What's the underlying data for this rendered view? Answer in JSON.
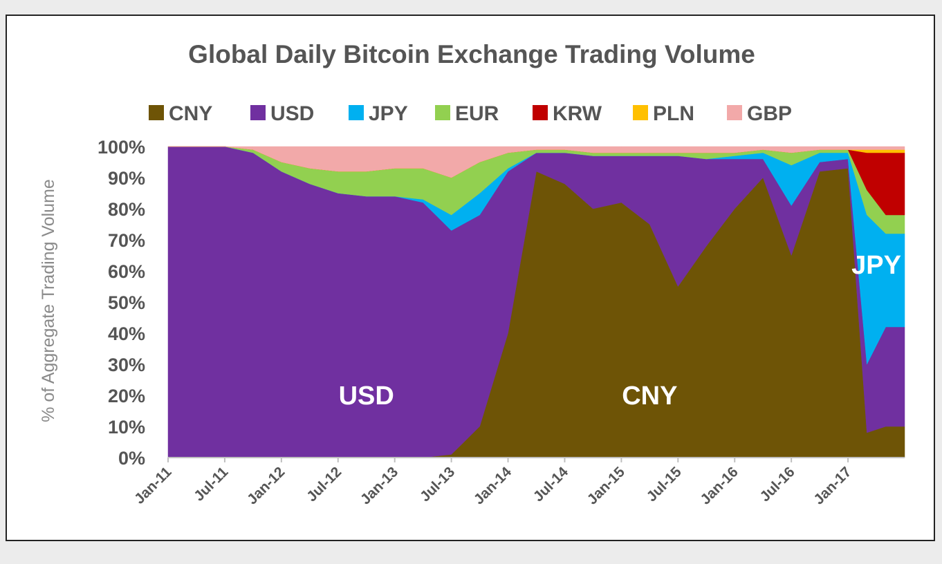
{
  "chart_data": {
    "type": "area",
    "stacked": "percent",
    "title": "Global Daily Bitcoin Exchange Trading Volume",
    "ylabel": "% of Aggregate Trading Volume",
    "xlabel": "",
    "ylim": [
      0,
      100
    ],
    "yticks": [
      "0%",
      "10%",
      "20%",
      "30%",
      "40%",
      "50%",
      "60%",
      "70%",
      "80%",
      "90%",
      "100%"
    ],
    "xticks": [
      "Jan-11",
      "Jul-11",
      "Jan-12",
      "Jul-12",
      "Jan-13",
      "Jul-13",
      "Jan-14",
      "Jul-14",
      "Jan-15",
      "Jul-15",
      "Jan-16",
      "Jul-16",
      "Jan-17"
    ],
    "legend_position": "top",
    "grid": false,
    "x": [
      "2011-01",
      "2011-04",
      "2011-07",
      "2011-10",
      "2012-01",
      "2012-04",
      "2012-07",
      "2012-10",
      "2013-01",
      "2013-04",
      "2013-07",
      "2013-10",
      "2014-01",
      "2014-04",
      "2014-07",
      "2014-10",
      "2015-01",
      "2015-04",
      "2015-07",
      "2015-10",
      "2016-01",
      "2016-04",
      "2016-07",
      "2016-10",
      "2017-01",
      "2017-03",
      "2017-05"
    ],
    "series": [
      {
        "name": "CNY",
        "color": "#6e5406",
        "values": [
          0,
          0,
          0,
          0,
          0,
          0,
          0,
          0,
          0,
          0,
          1,
          10,
          40,
          92,
          88,
          80,
          82,
          75,
          55,
          68,
          80,
          90,
          65,
          92,
          93,
          8,
          10
        ]
      },
      {
        "name": "USD",
        "color": "#7030a0",
        "values": [
          100,
          100,
          100,
          98,
          92,
          88,
          85,
          84,
          84,
          82,
          72,
          68,
          52,
          6,
          10,
          17,
          15,
          22,
          42,
          28,
          16,
          6,
          16,
          3,
          3,
          22,
          32
        ]
      },
      {
        "name": "JPY",
        "color": "#00b0f0",
        "values": [
          0,
          0,
          0,
          0,
          0,
          0,
          0,
          0,
          0,
          1,
          5,
          7,
          1,
          0,
          0,
          0,
          0,
          0,
          0,
          0,
          1,
          2,
          13,
          3,
          2,
          48,
          30
        ]
      },
      {
        "name": "EUR",
        "color": "#92d050",
        "values": [
          0,
          0,
          0,
          1,
          3,
          5,
          7,
          8,
          9,
          10,
          12,
          10,
          5,
          1,
          1,
          1,
          1,
          1,
          1,
          2,
          1,
          1,
          4,
          1,
          1,
          8,
          6
        ]
      },
      {
        "name": "KRW",
        "color": "#c00000",
        "values": [
          0,
          0,
          0,
          0,
          0,
          0,
          0,
          0,
          0,
          0,
          0,
          0,
          0,
          0,
          0,
          0,
          0,
          0,
          0,
          0,
          0,
          0,
          0,
          0,
          0,
          12,
          20
        ]
      },
      {
        "name": "PLN",
        "color": "#ffc000",
        "values": [
          0,
          0,
          0,
          0,
          0,
          0,
          0,
          0,
          0,
          0,
          0,
          0,
          0,
          0,
          0,
          0,
          0,
          0,
          0,
          0,
          0,
          0,
          0,
          0,
          0,
          1,
          1
        ]
      },
      {
        "name": "GBP",
        "color": "#f2a9a9",
        "values": [
          0,
          0,
          0,
          1,
          5,
          7,
          8,
          8,
          7,
          7,
          10,
          5,
          2,
          1,
          1,
          2,
          2,
          2,
          2,
          2,
          2,
          1,
          2,
          1,
          1,
          1,
          1
        ]
      }
    ],
    "annotations": [
      {
        "text": "USD",
        "x": "2012-10",
        "y": 20
      },
      {
        "text": "CNY",
        "x": "2015-04",
        "y": 20
      },
      {
        "text": "JPY",
        "x": "2017-04",
        "y": 62
      }
    ]
  }
}
